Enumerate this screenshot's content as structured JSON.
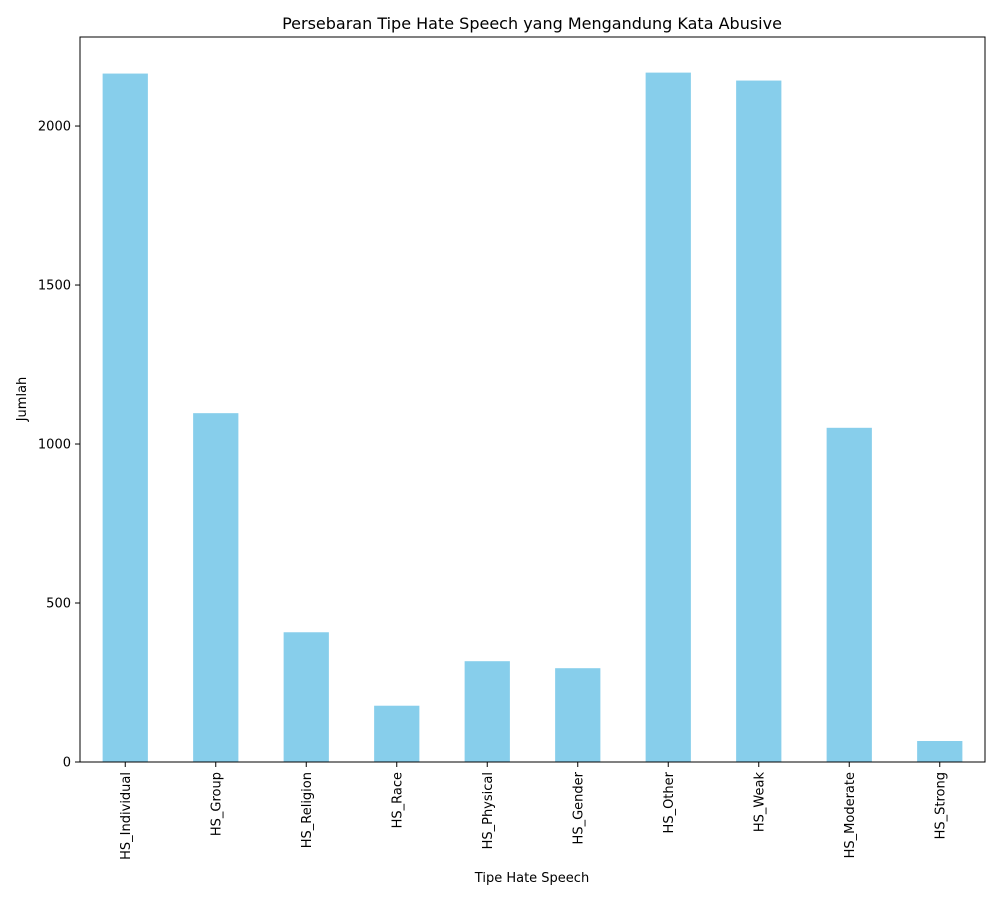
{
  "chart_data": {
    "type": "bar",
    "title": "Persebaran Tipe Hate Speech yang Mengandung Kata Abusive",
    "xlabel": "Tipe Hate Speech",
    "ylabel": "Jumlah",
    "categories": [
      "HS_Individual",
      "HS_Group",
      "HS_Religion",
      "HS_Race",
      "HS_Physical",
      "HS_Gender",
      "HS_Other",
      "HS_Weak",
      "HS_Moderate",
      "HS_Strong"
    ],
    "values": [
      2165,
      1097,
      408,
      177,
      317,
      295,
      2168,
      2143,
      1051,
      66
    ],
    "yticks": [
      0,
      500,
      1000,
      1500,
      2000
    ],
    "ylim": [
      0,
      2280
    ],
    "bar_color": "#87ceeb",
    "grid": false,
    "legend": "none"
  }
}
